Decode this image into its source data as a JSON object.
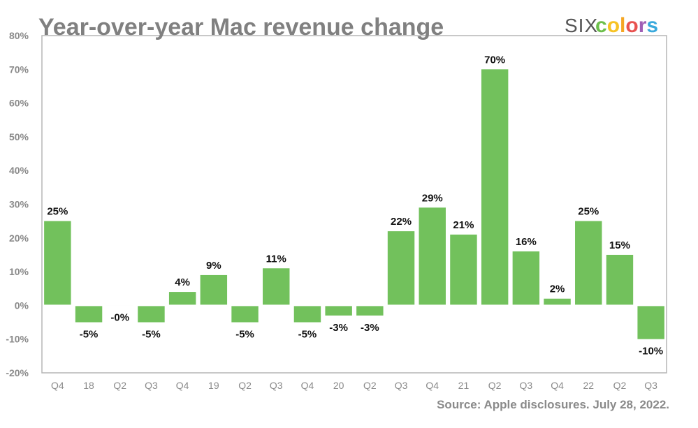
{
  "chart_data": {
    "type": "bar",
    "title": "Year-over-year Mac revenue change",
    "xlabel": "",
    "ylabel": "",
    "ylim": [
      -20,
      80
    ],
    "yticks": [
      "80%",
      "70%",
      "60%",
      "50%",
      "40%",
      "30%",
      "20%",
      "10%",
      "0%",
      "-10%",
      "-20%"
    ],
    "ytick_values": [
      80,
      70,
      60,
      50,
      40,
      30,
      20,
      10,
      0,
      -10,
      -20
    ],
    "grid": false,
    "categories": [
      "Q4",
      "18",
      "Q2",
      "Q3",
      "Q4",
      "19",
      "Q2",
      "Q3",
      "Q4",
      "20",
      "Q2",
      "Q3",
      "Q4",
      "21",
      "Q2",
      "Q3",
      "Q4",
      "22",
      "Q2",
      "Q3"
    ],
    "values": [
      25,
      -5,
      -0.1,
      -5,
      4,
      9,
      -5,
      11,
      -5,
      -3,
      -3,
      22,
      29,
      21,
      70,
      16,
      2,
      25,
      15,
      -10
    ],
    "data_labels": [
      "25%",
      "-5%",
      "-0%",
      "-5%",
      "4%",
      "9%",
      "-5%",
      "11%",
      "-5%",
      "-3%",
      "-3%",
      "22%",
      "29%",
      "21%",
      "70%",
      "16%",
      "2%",
      "25%",
      "15%",
      "-10%"
    ],
    "source": "Source: Apple disclosures. July 28, 2022.",
    "bar_color": "#72c15c"
  },
  "logo": {
    "six": "SIX",
    "letters": [
      "c",
      "o",
      "l",
      "o",
      "r",
      "s"
    ],
    "colors": [
      "#6cbf4b",
      "#f7c324",
      "#f5a623",
      "#e8524f",
      "#a05fb5",
      "#39a9dc"
    ]
  }
}
